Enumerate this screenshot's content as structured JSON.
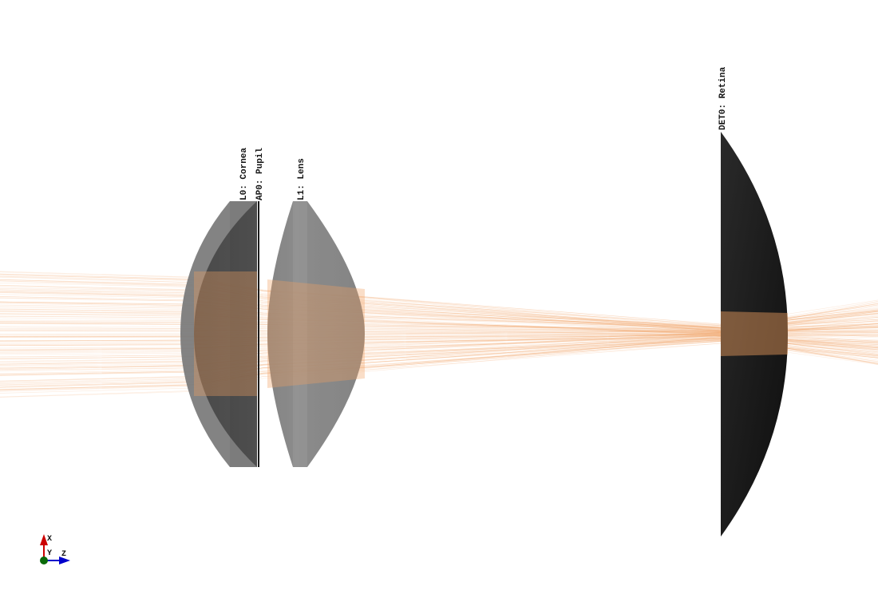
{
  "elements": [
    {
      "id": "cornea",
      "label": "L0: Cornea"
    },
    {
      "id": "pupil",
      "label": "AP0: Pupil"
    },
    {
      "id": "lens",
      "label": "L1: Lens"
    },
    {
      "id": "retina",
      "label": "DET0: Retina"
    }
  ],
  "axes": {
    "x": "X",
    "y": "Y",
    "z": "Z"
  },
  "colors": {
    "ray": "#f0a060",
    "lens_light": "#7c7c7c",
    "lens_dark": "#404040",
    "retina": "#1e1e1e",
    "axis_x": "#cc0000",
    "axis_y": "#0a6a0a",
    "axis_z": "#0000cc"
  }
}
